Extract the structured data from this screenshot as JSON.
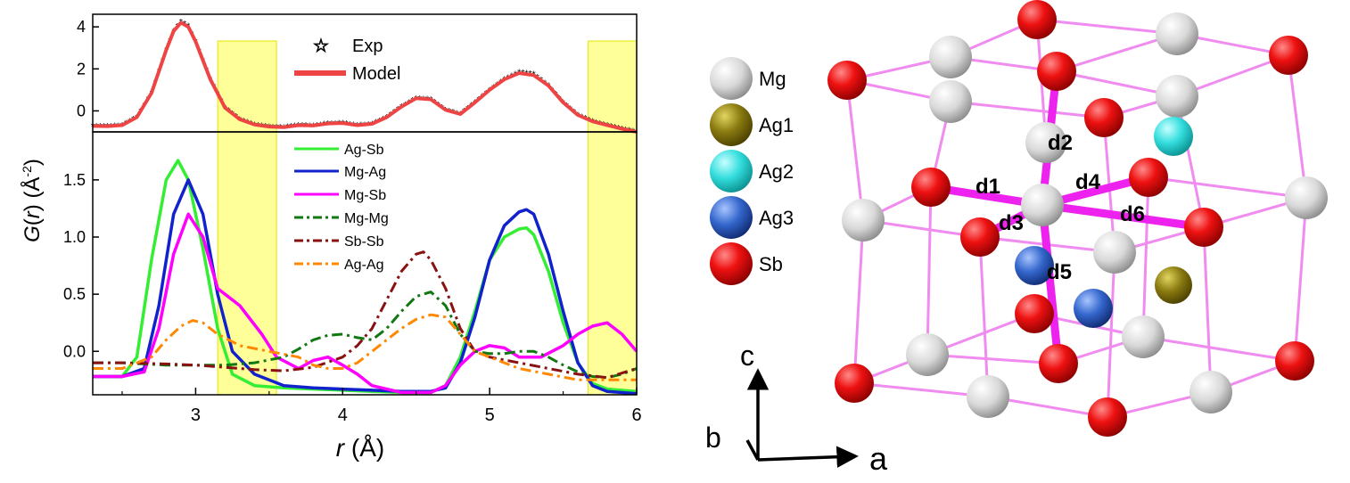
{
  "chart_data": [
    {
      "type": "line",
      "panel": "top",
      "x_axis_range": [
        2.3,
        6.0
      ],
      "ylim": [
        -1.0,
        4.6
      ],
      "yticks": [
        "4",
        "2",
        "0"
      ],
      "shaded_regions": [
        [
          3.15,
          3.55
        ],
        [
          5.67,
          6.0
        ]
      ],
      "shade_color": "#ffff99",
      "legend": {
        "placement": "top-center"
      },
      "series": [
        {
          "name": "Exp",
          "style": "star-markers",
          "color": "#000000",
          "x": [
            2.3,
            2.4,
            2.5,
            2.6,
            2.7,
            2.8,
            2.85,
            2.9,
            2.95,
            3.0,
            3.1,
            3.2,
            3.3,
            3.4,
            3.5,
            3.6,
            3.7,
            3.8,
            3.9,
            4.0,
            4.1,
            4.2,
            4.3,
            4.4,
            4.5,
            4.6,
            4.7,
            4.8,
            4.9,
            5.0,
            5.1,
            5.2,
            5.3,
            5.4,
            5.5,
            5.6,
            5.7,
            5.8,
            5.9,
            6.0
          ],
          "y": [
            -0.72,
            -0.73,
            -0.68,
            -0.3,
            0.85,
            2.9,
            3.8,
            4.25,
            4.05,
            3.3,
            1.5,
            0.15,
            -0.4,
            -0.65,
            -0.75,
            -0.78,
            -0.68,
            -0.7,
            -0.6,
            -0.58,
            -0.68,
            -0.62,
            -0.3,
            0.2,
            0.6,
            0.55,
            0.05,
            -0.15,
            0.4,
            1.0,
            1.5,
            1.85,
            1.75,
            1.2,
            0.4,
            -0.2,
            -0.5,
            -0.68,
            -0.85,
            -1.0
          ]
        },
        {
          "name": "Model",
          "style": "solid",
          "color": "#ee4444",
          "x": [
            2.3,
            2.4,
            2.5,
            2.6,
            2.7,
            2.8,
            2.85,
            2.9,
            2.95,
            3.0,
            3.1,
            3.2,
            3.3,
            3.4,
            3.5,
            3.6,
            3.7,
            3.8,
            3.9,
            4.0,
            4.1,
            4.2,
            4.3,
            4.4,
            4.5,
            4.6,
            4.7,
            4.8,
            4.9,
            5.0,
            5.1,
            5.2,
            5.3,
            5.4,
            5.5,
            5.6,
            5.7,
            5.8,
            5.9,
            6.0
          ],
          "y": [
            -0.72,
            -0.73,
            -0.68,
            -0.3,
            0.85,
            2.9,
            3.8,
            4.2,
            4.0,
            3.3,
            1.5,
            0.15,
            -0.4,
            -0.65,
            -0.75,
            -0.78,
            -0.68,
            -0.7,
            -0.6,
            -0.58,
            -0.68,
            -0.62,
            -0.3,
            0.2,
            0.6,
            0.55,
            0.05,
            -0.15,
            0.4,
            1.0,
            1.5,
            1.8,
            1.7,
            1.2,
            0.4,
            -0.2,
            -0.5,
            -0.68,
            -0.85,
            -1.0
          ]
        }
      ]
    },
    {
      "type": "line",
      "panel": "bottom",
      "xlabel": "r (Å)",
      "ylabel": "G(r) (Å-2)",
      "x_axis_range": [
        2.3,
        6.0
      ],
      "ylim": [
        -0.38,
        1.92
      ],
      "xticks": [
        "3",
        "4",
        "5",
        "6"
      ],
      "yticks": [
        "1.5",
        "1.0",
        "0.5",
        "0.0"
      ],
      "shaded_regions": [
        [
          3.15,
          3.55
        ],
        [
          5.67,
          6.0
        ]
      ],
      "shade_color": "#ffff99",
      "legend": {
        "placement": "top-center"
      },
      "series": [
        {
          "name": "Ag-Sb",
          "style": "solid",
          "color": "#33ee33",
          "x": [
            2.3,
            2.5,
            2.6,
            2.7,
            2.8,
            2.88,
            2.95,
            3.05,
            3.15,
            3.25,
            3.4,
            3.6,
            3.8,
            4.0,
            4.2,
            4.4,
            4.6,
            4.7,
            4.8,
            4.9,
            5.0,
            5.1,
            5.2,
            5.25,
            5.3,
            5.4,
            5.5,
            5.6,
            5.7,
            5.8,
            6.0
          ],
          "y": [
            -0.22,
            -0.22,
            -0.05,
            0.8,
            1.5,
            1.67,
            1.5,
            0.9,
            0.2,
            -0.2,
            -0.3,
            -0.32,
            -0.33,
            -0.34,
            -0.35,
            -0.36,
            -0.36,
            -0.3,
            -0.05,
            0.35,
            0.8,
            1.0,
            1.07,
            1.08,
            1.02,
            0.7,
            0.25,
            -0.1,
            -0.28,
            -0.33,
            -0.35
          ]
        },
        {
          "name": "Mg-Ag",
          "style": "solid",
          "color": "#1122cc",
          "x": [
            2.3,
            2.5,
            2.65,
            2.75,
            2.85,
            2.95,
            3.05,
            3.15,
            3.25,
            3.4,
            3.6,
            3.8,
            4.0,
            4.2,
            4.4,
            4.6,
            4.7,
            4.8,
            4.9,
            5.0,
            5.1,
            5.2,
            5.25,
            5.3,
            5.4,
            5.5,
            5.6,
            5.7,
            5.8,
            6.0
          ],
          "y": [
            -0.22,
            -0.22,
            -0.15,
            0.4,
            1.2,
            1.5,
            1.2,
            0.5,
            0.0,
            -0.2,
            -0.3,
            -0.32,
            -0.33,
            -0.34,
            -0.35,
            -0.35,
            -0.32,
            -0.1,
            0.3,
            0.8,
            1.1,
            1.22,
            1.24,
            1.2,
            0.85,
            0.35,
            -0.1,
            -0.3,
            -0.35,
            -0.37
          ]
        },
        {
          "name": "Mg-Sb",
          "style": "solid",
          "color": "#ff00ff",
          "x": [
            2.3,
            2.5,
            2.65,
            2.75,
            2.85,
            2.95,
            3.05,
            3.15,
            3.3,
            3.45,
            3.55,
            3.7,
            3.8,
            3.9,
            4.0,
            4.1,
            4.2,
            4.4,
            4.6,
            4.7,
            4.8,
            4.9,
            5.0,
            5.1,
            5.2,
            5.35,
            5.5,
            5.6,
            5.7,
            5.8,
            5.9,
            6.0
          ],
          "y": [
            -0.22,
            -0.22,
            -0.18,
            0.2,
            0.85,
            1.2,
            1.0,
            0.55,
            0.4,
            0.15,
            -0.05,
            -0.15,
            -0.08,
            -0.05,
            -0.12,
            -0.2,
            -0.3,
            -0.36,
            -0.36,
            -0.3,
            -0.12,
            0.0,
            0.05,
            0.03,
            -0.05,
            -0.05,
            0.05,
            0.15,
            0.22,
            0.25,
            0.15,
            0.0
          ]
        },
        {
          "name": "Mg-Mg",
          "style": "dash-dot",
          "color": "#117711",
          "x": [
            2.3,
            2.5,
            2.8,
            3.0,
            3.2,
            3.4,
            3.6,
            3.7,
            3.8,
            3.9,
            4.0,
            4.1,
            4.2,
            4.3,
            4.4,
            4.5,
            4.6,
            4.7,
            4.8,
            4.9,
            5.0,
            5.1,
            5.2,
            5.3,
            5.4,
            5.5,
            5.6,
            5.7,
            5.8,
            5.9,
            6.0
          ],
          "y": [
            -0.1,
            -0.1,
            -0.12,
            -0.12,
            -0.12,
            -0.1,
            -0.05,
            0.02,
            0.1,
            0.14,
            0.15,
            0.12,
            0.1,
            0.2,
            0.35,
            0.48,
            0.52,
            0.4,
            0.15,
            0.0,
            -0.02,
            -0.02,
            0.0,
            0.0,
            -0.05,
            -0.12,
            -0.18,
            -0.22,
            -0.23,
            -0.2,
            -0.15
          ]
        },
        {
          "name": "Sb-Sb",
          "style": "dash-dot",
          "color": "#881111",
          "x": [
            2.3,
            2.5,
            2.8,
            3.0,
            3.2,
            3.4,
            3.6,
            3.8,
            4.0,
            4.1,
            4.2,
            4.3,
            4.4,
            4.5,
            4.55,
            4.6,
            4.7,
            4.8,
            4.9,
            5.0,
            5.2,
            5.4,
            5.6,
            5.8,
            6.0
          ],
          "y": [
            -0.1,
            -0.1,
            -0.11,
            -0.12,
            -0.14,
            -0.16,
            -0.17,
            -0.14,
            -0.05,
            0.05,
            0.2,
            0.45,
            0.7,
            0.85,
            0.87,
            0.8,
            0.55,
            0.2,
            0.0,
            -0.05,
            -0.1,
            -0.15,
            -0.2,
            -0.23,
            -0.15
          ]
        },
        {
          "name": "Ag-Ag",
          "style": "dash-dot",
          "color": "#ff8800",
          "x": [
            2.3,
            2.5,
            2.7,
            2.8,
            2.9,
            2.98,
            3.05,
            3.15,
            3.3,
            3.5,
            3.7,
            3.8,
            3.9,
            4.0,
            4.1,
            4.2,
            4.3,
            4.4,
            4.5,
            4.6,
            4.7,
            4.8,
            4.9,
            5.0,
            5.2,
            5.4,
            5.6,
            5.8,
            6.0
          ],
          "y": [
            -0.15,
            -0.15,
            -0.05,
            0.1,
            0.22,
            0.27,
            0.25,
            0.15,
            0.05,
            0.0,
            -0.05,
            -0.12,
            -0.15,
            -0.15,
            -0.1,
            0.0,
            0.1,
            0.2,
            0.28,
            0.32,
            0.3,
            0.15,
            0.0,
            -0.05,
            -0.15,
            -0.2,
            -0.25,
            -0.25,
            -0.25
          ]
        }
      ]
    }
  ],
  "structure": {
    "legend": [
      {
        "label": "Mg",
        "color": "#d9d9d9"
      },
      {
        "label": "Ag1",
        "color": "#8a7a10"
      },
      {
        "label": "Ag2",
        "color": "#33dddd"
      },
      {
        "label": "Ag3",
        "color": "#3366cc"
      },
      {
        "label": "Sb",
        "color": "#dd1111"
      }
    ],
    "bond_labels": [
      "d1",
      "d2",
      "d3",
      "d4",
      "d5",
      "d6"
    ],
    "axis_labels": {
      "c": "c",
      "b": "b",
      "a": "a"
    },
    "colors": {
      "bond": "#ee66ee",
      "highlight_bond": "#ee22ee"
    }
  }
}
